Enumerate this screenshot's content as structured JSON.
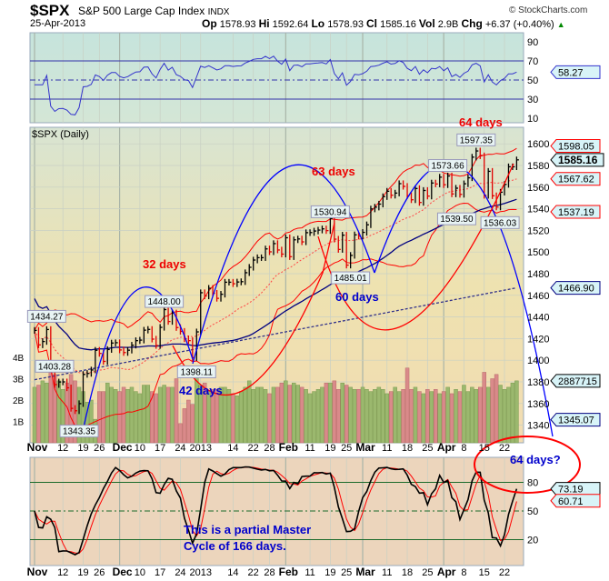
{
  "header": {
    "symbol": "$SPX",
    "name": "S&P 500 Large Cap Index",
    "exchange": "INDX",
    "source": "© StockCharts.com",
    "date": "25-Apr-2013",
    "quote": {
      "op_label": "Op",
      "op": "1578.93",
      "hi_label": "Hi",
      "hi": "1592.64",
      "lo_label": "Lo",
      "lo": "1578.93",
      "cl_label": "Cl",
      "cl": "1585.16",
      "vol_label": "Vol",
      "vol": "2.9B",
      "chg_label": "Chg",
      "chg": "+6.37 (+0.40%)",
      "chg_icon": "up-triangle-icon"
    }
  },
  "chart_data": [
    {
      "type": "line",
      "panel": "rsi",
      "yticks": [
        90,
        70,
        50,
        30,
        10
      ],
      "reference_lines": [
        70,
        50,
        30
      ],
      "last_value_label": "58.27",
      "color": "#3333cc"
    },
    {
      "type": "ohlc",
      "panel": "price",
      "title": "$SPX (Daily)",
      "yticks": [
        1600,
        1580,
        1560,
        1540,
        1520,
        1500,
        1480,
        1460,
        1440,
        1420,
        1400,
        1380,
        1360,
        1340
      ],
      "ylim": [
        1324,
        1615
      ],
      "volume_ticks": [
        "4B",
        "3B",
        "2B",
        "1B"
      ],
      "xticks": [
        [
          "Nov",
          "2012-11-01"
        ],
        [
          "12",
          "2012-11-12"
        ],
        [
          "19",
          "2012-11-19"
        ],
        [
          "26",
          "2012-11-26"
        ],
        [
          "Dec",
          "2012-12-03"
        ],
        [
          "10",
          "2012-12-10"
        ],
        [
          "17",
          "2012-12-17"
        ],
        [
          "24",
          "2012-12-24"
        ],
        [
          "2013",
          "2013-01-02"
        ],
        [
          "14",
          "2013-01-14"
        ],
        [
          "22",
          "2013-01-22"
        ],
        [
          "28",
          "2013-01-28"
        ],
        [
          "Feb",
          "2013-02-01"
        ],
        [
          "11",
          "2013-02-11"
        ],
        [
          "19",
          "2013-02-19"
        ],
        [
          "25",
          "2013-02-25"
        ],
        [
          "Mar",
          "2013-03-01"
        ],
        [
          "11",
          "2013-03-11"
        ],
        [
          "18",
          "2013-03-18"
        ],
        [
          "25",
          "2013-03-25"
        ],
        [
          "Apr",
          "2013-04-01"
        ],
        [
          "8",
          "2013-04-08"
        ],
        [
          "15",
          "2013-04-15"
        ],
        [
          "22",
          "2013-04-22"
        ]
      ],
      "close": [
        [
          "2012-11-01",
          1427.6
        ],
        [
          "2012-11-02",
          1414.2
        ],
        [
          "2012-11-05",
          1417.3
        ],
        [
          "2012-11-06",
          1428.4
        ],
        [
          "2012-11-07",
          1394.5
        ],
        [
          "2012-11-08",
          1377.5
        ],
        [
          "2012-11-09",
          1379.9
        ],
        [
          "2012-11-12",
          1380.0
        ],
        [
          "2012-11-13",
          1374.5
        ],
        [
          "2012-11-14",
          1355.5
        ],
        [
          "2012-11-15",
          1353.3
        ],
        [
          "2012-11-16",
          1359.9
        ],
        [
          "2012-11-19",
          1386.9
        ],
        [
          "2012-11-20",
          1387.8
        ],
        [
          "2012-11-21",
          1391.0
        ],
        [
          "2012-11-23",
          1409.2
        ],
        [
          "2012-11-26",
          1406.3
        ],
        [
          "2012-11-27",
          1398.9
        ],
        [
          "2012-11-28",
          1409.9
        ],
        [
          "2012-11-29",
          1415.9
        ],
        [
          "2012-11-30",
          1416.2
        ],
        [
          "2012-12-03",
          1409.5
        ],
        [
          "2012-12-04",
          1407.1
        ],
        [
          "2012-12-05",
          1409.3
        ],
        [
          "2012-12-06",
          1413.9
        ],
        [
          "2012-12-07",
          1418.1
        ],
        [
          "2012-12-10",
          1418.6
        ],
        [
          "2012-12-11",
          1427.8
        ],
        [
          "2012-12-12",
          1428.5
        ],
        [
          "2012-12-13",
          1419.5
        ],
        [
          "2012-12-14",
          1413.6
        ],
        [
          "2012-12-17",
          1430.4
        ],
        [
          "2012-12-18",
          1446.8
        ],
        [
          "2012-12-19",
          1435.8
        ],
        [
          "2012-12-20",
          1443.7
        ],
        [
          "2012-12-21",
          1430.2
        ],
        [
          "2012-12-24",
          1426.7
        ],
        [
          "2012-12-26",
          1419.8
        ],
        [
          "2012-12-27",
          1418.1
        ],
        [
          "2012-12-28",
          1402.4
        ],
        [
          "2012-12-31",
          1426.2
        ],
        [
          "2013-01-02",
          1462.4
        ],
        [
          "2013-01-03",
          1459.4
        ],
        [
          "2013-01-04",
          1466.5
        ],
        [
          "2013-01-07",
          1461.9
        ],
        [
          "2013-01-08",
          1457.2
        ],
        [
          "2013-01-09",
          1461.0
        ],
        [
          "2013-01-10",
          1472.1
        ],
        [
          "2013-01-11",
          1472.1
        ],
        [
          "2013-01-14",
          1470.7
        ],
        [
          "2013-01-15",
          1472.3
        ],
        [
          "2013-01-16",
          1472.6
        ],
        [
          "2013-01-17",
          1480.9
        ],
        [
          "2013-01-18",
          1485.9
        ],
        [
          "2013-01-22",
          1492.6
        ],
        [
          "2013-01-23",
          1494.8
        ],
        [
          "2013-01-24",
          1494.8
        ],
        [
          "2013-01-25",
          1502.9
        ],
        [
          "2013-01-28",
          1500.2
        ],
        [
          "2013-01-29",
          1507.8
        ],
        [
          "2013-01-30",
          1501.9
        ],
        [
          "2013-01-31",
          1498.1
        ],
        [
          "2013-02-01",
          1513.2
        ],
        [
          "2013-02-04",
          1495.7
        ],
        [
          "2013-02-05",
          1511.3
        ],
        [
          "2013-02-06",
          1512.1
        ],
        [
          "2013-02-07",
          1509.4
        ],
        [
          "2013-02-08",
          1517.9
        ],
        [
          "2013-02-11",
          1518.0
        ],
        [
          "2013-02-12",
          1519.4
        ],
        [
          "2013-02-13",
          1520.3
        ],
        [
          "2013-02-14",
          1521.4
        ],
        [
          "2013-02-15",
          1519.8
        ],
        [
          "2013-02-19",
          1530.9
        ],
        [
          "2013-02-20",
          1511.9
        ],
        [
          "2013-02-21",
          1502.4
        ],
        [
          "2013-02-22",
          1515.6
        ],
        [
          "2013-02-25",
          1487.9
        ],
        [
          "2013-02-26",
          1496.9
        ],
        [
          "2013-02-27",
          1515.9
        ],
        [
          "2013-02-28",
          1514.7
        ],
        [
          "2013-03-01",
          1518.2
        ],
        [
          "2013-03-04",
          1525.2
        ],
        [
          "2013-03-05",
          1539.8
        ],
        [
          "2013-03-06",
          1541.5
        ],
        [
          "2013-03-07",
          1544.3
        ],
        [
          "2013-03-08",
          1551.2
        ],
        [
          "2013-03-11",
          1556.2
        ],
        [
          "2013-03-12",
          1552.5
        ],
        [
          "2013-03-13",
          1554.5
        ],
        [
          "2013-03-14",
          1563.2
        ],
        [
          "2013-03-15",
          1560.7
        ],
        [
          "2013-03-18",
          1552.1
        ],
        [
          "2013-03-19",
          1548.3
        ],
        [
          "2013-03-20",
          1558.7
        ],
        [
          "2013-03-21",
          1545.8
        ],
        [
          "2013-03-22",
          1556.9
        ],
        [
          "2013-03-25",
          1551.7
        ],
        [
          "2013-03-26",
          1563.8
        ],
        [
          "2013-03-27",
          1562.9
        ],
        [
          "2013-03-28",
          1569.2
        ],
        [
          "2013-04-01",
          1562.2
        ],
        [
          "2013-04-02",
          1570.3
        ],
        [
          "2013-04-03",
          1553.7
        ],
        [
          "2013-04-04",
          1559.0
        ],
        [
          "2013-04-05",
          1553.3
        ],
        [
          "2013-04-08",
          1563.1
        ],
        [
          "2013-04-09",
          1568.6
        ],
        [
          "2013-04-10",
          1587.7
        ],
        [
          "2013-04-11",
          1593.4
        ],
        [
          "2013-04-12",
          1588.9
        ],
        [
          "2013-04-15",
          1552.4
        ],
        [
          "2013-04-16",
          1574.6
        ],
        [
          "2013-04-17",
          1552.0
        ],
        [
          "2013-04-18",
          1541.6
        ],
        [
          "2013-04-19",
          1555.3
        ],
        [
          "2013-04-22",
          1562.5
        ],
        [
          "2013-04-23",
          1578.8
        ],
        [
          "2013-04-24",
          1578.8
        ],
        [
          "2013-04-25",
          1585.2
        ]
      ],
      "volume_billions": [
        2.6,
        2.7,
        2.9,
        2.8,
        3.3,
        3.2,
        2.9,
        2.5,
        2.8,
        3.2,
        2.9,
        2.6,
        2.4,
        1.9,
        2.0,
        1.1,
        2.4,
        2.4,
        2.8,
        2.6,
        2.5,
        2.4,
        2.6,
        2.5,
        2.6,
        2.4,
        2.3,
        2.7,
        2.7,
        2.4,
        2.3,
        2.6,
        2.7,
        2.6,
        2.6,
        3.0,
        0.9,
        1.6,
        2.0,
        1.8,
        3.2,
        2.7,
        2.8,
        2.4,
        2.5,
        2.5,
        2.6,
        2.6,
        2.5,
        2.3,
        2.2,
        2.4,
        2.6,
        2.9,
        2.5,
        2.6,
        2.6,
        2.5,
        2.3,
        2.6,
        2.6,
        2.8,
        2.9,
        2.7,
        2.8,
        2.7,
        2.6,
        2.5,
        2.3,
        2.4,
        2.5,
        2.6,
        2.8,
        2.8,
        2.9,
        2.5,
        2.8,
        2.7,
        2.6,
        2.5,
        2.5,
        2.6,
        2.5,
        2.4,
        2.5,
        2.6,
        2.5,
        2.3,
        2.4,
        2.6,
        2.4,
        2.5,
        3.5,
        2.5,
        2.6,
        2.4,
        2.3,
        2.5,
        2.4,
        2.5,
        2.3,
        2.4,
        2.6,
        2.3,
        2.5,
        2.4,
        2.7,
        2.4,
        2.6,
        2.5,
        2.6,
        3.3,
        2.6,
        3.0,
        3.2,
        2.7,
        2.5,
        2.6,
        2.8,
        2.9
      ],
      "sma200": [
        1382,
        1466.9
      ],
      "last_value_labels": {
        "upper_band": "1598.05",
        "close": "1585.16",
        "sma20": "1567.62",
        "lower_band": "1537.19",
        "sma200": "1466.90",
        "volume": "2887715",
        "volume_ma": "1345.07"
      },
      "point_labels": [
        [
          "1434.27",
          "2012-11-06",
          1434.27
        ],
        [
          "1403.28",
          "2012-11-01",
          1403.28
        ],
        [
          "1343.35",
          "2012-11-16",
          1343.35
        ],
        [
          "1448.00",
          "2012-12-18",
          1448.0
        ],
        [
          "1398.11",
          "2012-12-31",
          1398.11
        ],
        [
          "1530.94",
          "2013-02-19",
          1530.94
        ],
        [
          "1485.01",
          "2013-02-26",
          1485.01
        ],
        [
          "1573.66",
          "2013-04-02",
          1573.66
        ],
        [
          "1597.35",
          "2013-04-11",
          1597.35
        ],
        [
          "1539.50",
          "2013-04-08",
          1539.5
        ],
        [
          "1536.03",
          "2013-04-18",
          1536.03
        ]
      ],
      "annotations": {
        "c32": "32 days",
        "c42": "42 days",
        "c63": "63 days",
        "c60": "60 days",
        "c64": "64 days",
        "c64q": "64 days?",
        "master": "This is a partial Master",
        "master2": "Cycle of 166 days."
      },
      "colors": {
        "up": "#000000",
        "down": "#e00000",
        "band": "#ff0000",
        "cycle_blue": "#0000ff",
        "sma": "#000080",
        "vol_up": "#9bb86e",
        "vol_down": "#d98a8a"
      }
    },
    {
      "type": "line",
      "panel": "stochastic",
      "yticks": [
        80,
        50,
        20
      ],
      "reference_lines": [
        80,
        50,
        20
      ],
      "last_value_labels": {
        "k": "73.19",
        "d": "60.71"
      }
    }
  ]
}
